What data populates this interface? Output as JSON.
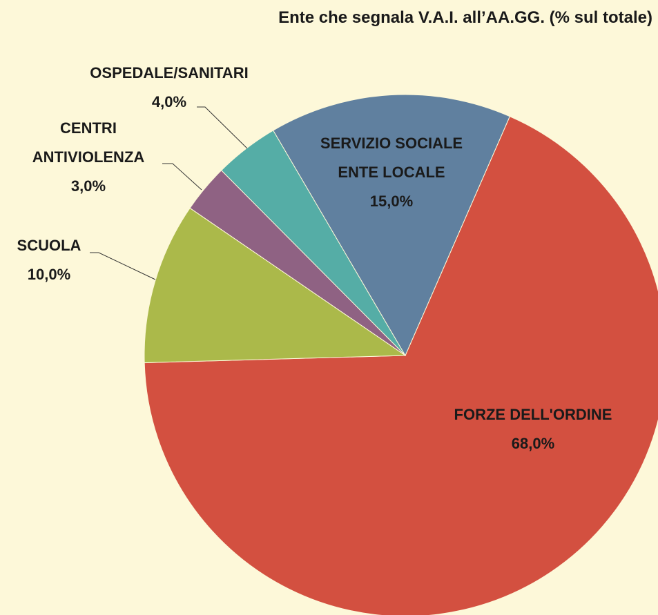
{
  "chart_data": {
    "type": "pie",
    "title": "Ente che segnala V.A.I. all’AA.GG. (% sul totale)",
    "categories": [
      "FORZE DELL'ORDINE",
      "SCUOLA",
      "CENTRI\nANTIVIOLENZA",
      "OSPEDALE/SANITARI",
      "SERVIZIO SOCIALE\nENTE LOCALE"
    ],
    "values": [
      68,
      10,
      3,
      4,
      15
    ],
    "value_labels": [
      "68,0%",
      "10,0%",
      "3,0%",
      "4,0%",
      "15,0%"
    ],
    "colors": [
      "#d35040",
      "#abb94a",
      "#8f6283",
      "#55ada6",
      "#60809f"
    ]
  }
}
